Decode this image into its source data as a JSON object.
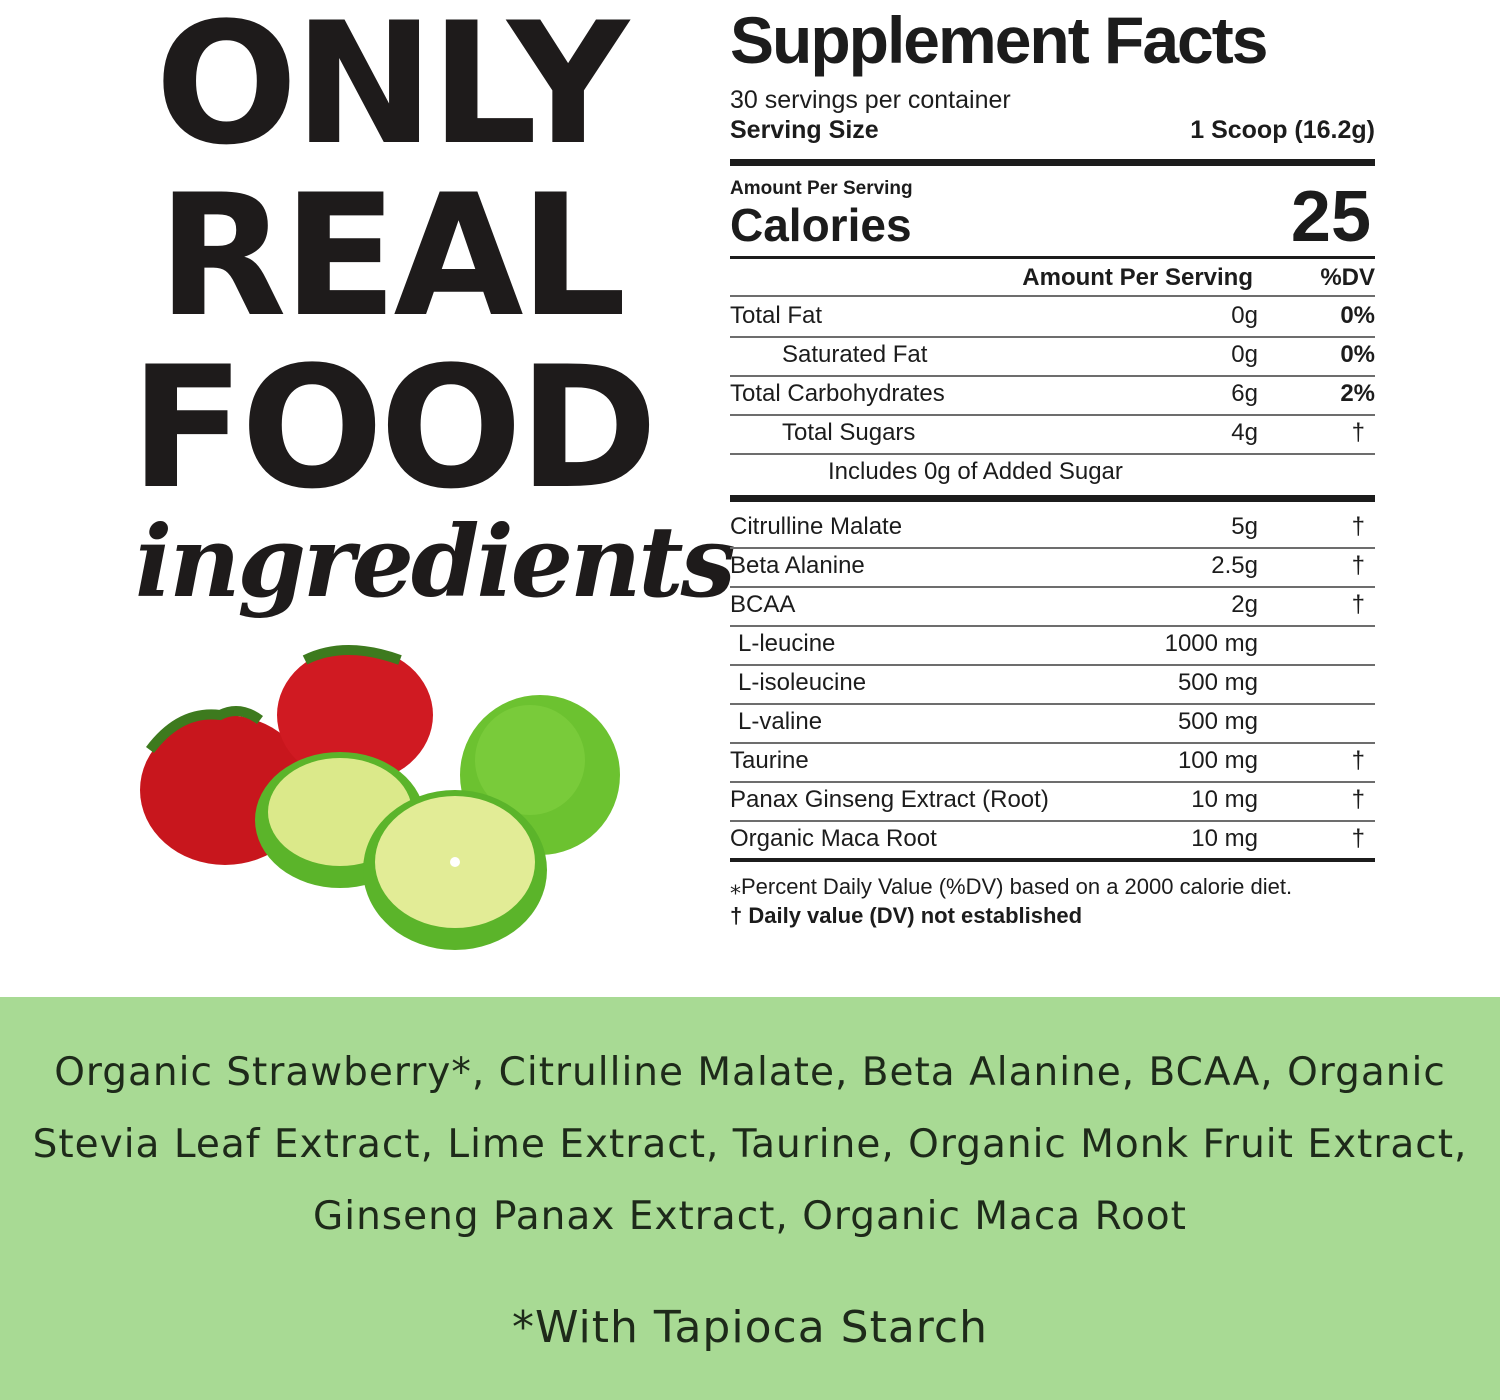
{
  "headline": {
    "lines": [
      "ONLY",
      "REAL",
      "FOOD"
    ],
    "script": "ingredients"
  },
  "facts": {
    "title": "Supplement Facts",
    "servings": "30 servings per container",
    "serving_size_label": "Serving Size",
    "serving_size_value": "1 Scoop (16.2g)",
    "amount_per_serving": "Amount Per Serving",
    "calories_label": "Calories",
    "calories_value": "25",
    "column_headers": {
      "amount": "Amount Per Serving",
      "dv": "%DV"
    },
    "nutrients": [
      {
        "name": "Total Fat",
        "amount": "0g",
        "dv": "0%"
      },
      {
        "name": "Saturated Fat",
        "amount": "0g",
        "dv": "0%"
      },
      {
        "name": "Total Carbohydrates",
        "amount": "6g",
        "dv": "2%"
      },
      {
        "name": "Total Sugars",
        "amount": "4g",
        "dv": "†"
      },
      {
        "name": "Includes 0g of Added Sugar",
        "amount": "",
        "dv": ""
      }
    ],
    "ingredients": [
      {
        "name": "Citrulline Malate",
        "amount": "5g",
        "dv": "†"
      },
      {
        "name": "Beta Alanine",
        "amount": "2.5g",
        "dv": "†"
      },
      {
        "name": "BCAA",
        "amount": "2g",
        "dv": "†"
      },
      {
        "name": "L-leucine",
        "amount": "1000 mg",
        "dv": ""
      },
      {
        "name": "L-isoleucine",
        "amount": "500 mg",
        "dv": ""
      },
      {
        "name": "L-valine",
        "amount": "500 mg",
        "dv": ""
      },
      {
        "name": "Taurine",
        "amount": "100 mg",
        "dv": "†"
      },
      {
        "name": "Panax Ginseng Extract (Root)",
        "amount": "10 mg",
        "dv": "†"
      },
      {
        "name": "Organic Maca Root",
        "amount": "10 mg",
        "dv": "†"
      }
    ],
    "footnote_1": "⁎Percent Daily Value (%DV) based on a 2000 calorie diet.",
    "footnote_2": "† Daily value (DV) not established"
  },
  "ingredients_band": {
    "lines": [
      "Organic Strawberry*, Citrulline Malate, Beta Alanine, BCAA, Organic",
      "Stevia Leaf Extract, Lime Extract, Taurine, Organic Monk Fruit Extract,",
      "Ginseng Panax Extract, Organic Maca Root"
    ],
    "note": "*With Tapioca Starch",
    "color": "#a8da94"
  },
  "image": {
    "icon": "strawberries-and-limes"
  }
}
